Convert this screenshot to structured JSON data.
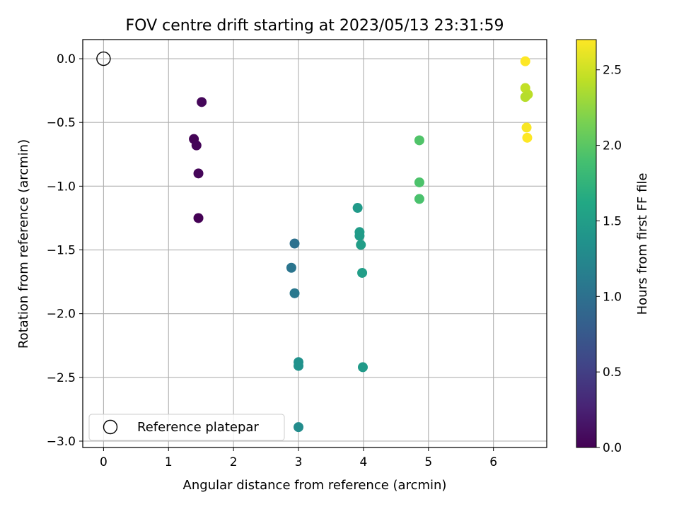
{
  "chart_data": {
    "type": "scatter",
    "title": "FOV centre drift starting at 2023/05/13 23:31:59",
    "xlabel": "Angular distance from reference (arcmin)",
    "ylabel": "Rotation from reference (arcmin)",
    "xlim": [
      -0.32,
      6.82
    ],
    "ylim": [
      -3.05,
      0.15
    ],
    "xticks": [
      0,
      1,
      2,
      3,
      4,
      5,
      6
    ],
    "xtick_labels": [
      "0",
      "1",
      "2",
      "3",
      "4",
      "5",
      "6"
    ],
    "yticks": [
      0.0,
      -0.5,
      -1.0,
      -1.5,
      -2.0,
      -2.5,
      -3.0
    ],
    "ytick_labels": [
      "0.0",
      "−0.5",
      "−1.0",
      "−1.5",
      "−2.0",
      "−2.5",
      "−3.0"
    ],
    "grid": true,
    "legend": {
      "placement": "lower-left",
      "entries": [
        {
          "label": "Reference platepar",
          "marker": "open-circle",
          "color": "#000000"
        }
      ]
    },
    "reference_point": {
      "x": 0.0,
      "y": 0.0
    },
    "colorbar": {
      "label": "Hours from first FF file",
      "colormap": "viridis",
      "range": [
        0.0,
        2.7
      ],
      "ticks": [
        0.0,
        0.5,
        1.0,
        1.5,
        2.0,
        2.5
      ],
      "tick_labels": [
        "0.0",
        "0.5",
        "1.0",
        "1.5",
        "2.0",
        "2.5"
      ]
    },
    "points": [
      {
        "x": 1.51,
        "y": -0.34,
        "hours": 0.05
      },
      {
        "x": 1.39,
        "y": -0.63,
        "hours": 0.02
      },
      {
        "x": 1.43,
        "y": -0.68,
        "hours": 0.03
      },
      {
        "x": 1.46,
        "y": -0.9,
        "hours": 0.04
      },
      {
        "x": 1.46,
        "y": -1.25,
        "hours": 0.0
      },
      {
        "x": 2.94,
        "y": -1.45,
        "hours": 1.0
      },
      {
        "x": 2.89,
        "y": -1.64,
        "hours": 1.05
      },
      {
        "x": 2.94,
        "y": -1.84,
        "hours": 1.08
      },
      {
        "x": 3.0,
        "y": -2.38,
        "hours": 1.35
      },
      {
        "x": 3.0,
        "y": -2.41,
        "hours": 1.36
      },
      {
        "x": 3.0,
        "y": -2.89,
        "hours": 1.3
      },
      {
        "x": 3.91,
        "y": -1.17,
        "hours": 1.45
      },
      {
        "x": 3.94,
        "y": -1.36,
        "hours": 1.48
      },
      {
        "x": 3.94,
        "y": -1.39,
        "hours": 1.47
      },
      {
        "x": 3.96,
        "y": -1.46,
        "hours": 1.5
      },
      {
        "x": 3.98,
        "y": -1.68,
        "hours": 1.5
      },
      {
        "x": 3.99,
        "y": -2.42,
        "hours": 1.45
      },
      {
        "x": 4.86,
        "y": -0.64,
        "hours": 1.95
      },
      {
        "x": 4.86,
        "y": -0.97,
        "hours": 1.93
      },
      {
        "x": 4.86,
        "y": -1.1,
        "hours": 1.92
      },
      {
        "x": 6.49,
        "y": -0.02,
        "hours": 2.7
      },
      {
        "x": 6.49,
        "y": -0.23,
        "hours": 2.45
      },
      {
        "x": 6.53,
        "y": -0.28,
        "hours": 2.42
      },
      {
        "x": 6.49,
        "y": -0.3,
        "hours": 2.4
      },
      {
        "x": 6.51,
        "y": -0.54,
        "hours": 2.68
      },
      {
        "x": 6.52,
        "y": -0.62,
        "hours": 2.7
      }
    ]
  }
}
